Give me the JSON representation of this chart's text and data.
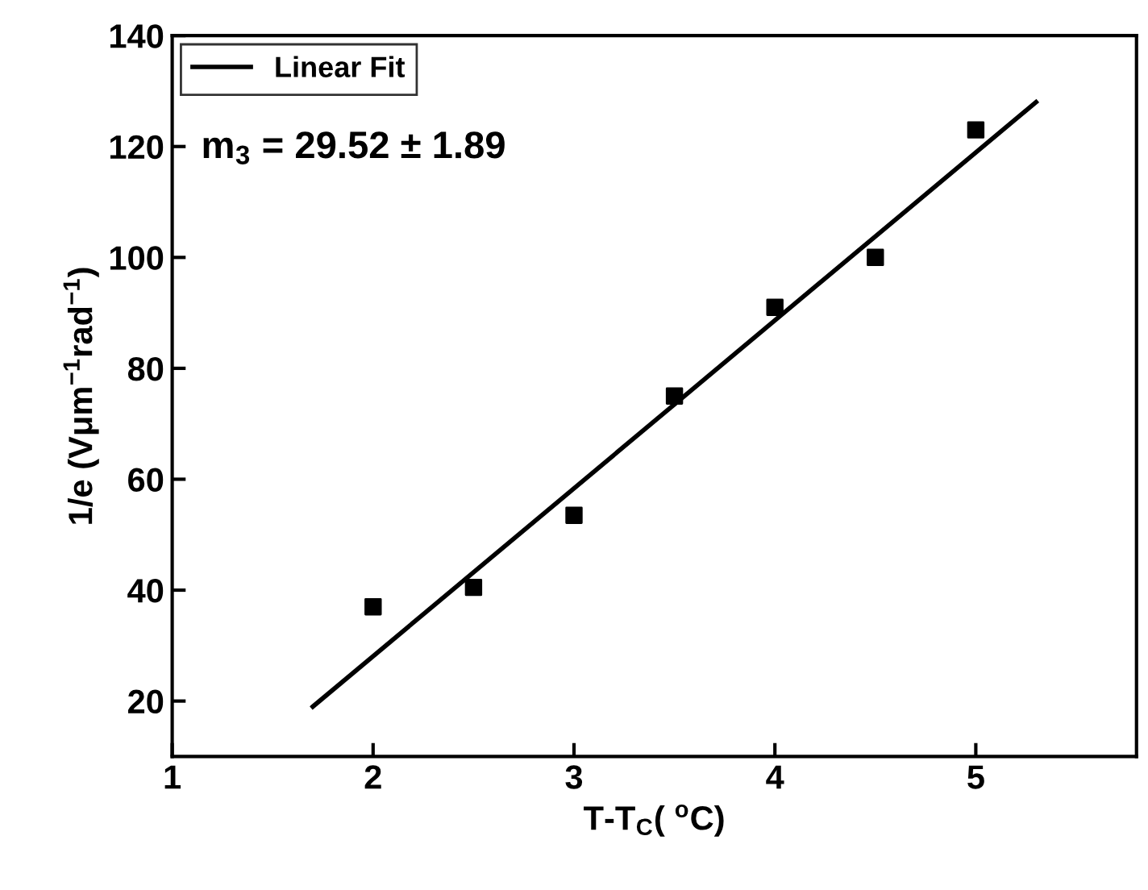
{
  "chart_data": {
    "type": "scatter",
    "xlabel": "T-T$_{C}$( $^{o}$C)",
    "ylabel": "1/e (Vμm$^{−1}$rad$^{−1}$)",
    "series": [
      {
        "color": "#000000",
        "marker": "square",
        "x": [
          2,
          2.5,
          3,
          3.5,
          4,
          4.5,
          5
        ],
        "values": [
          37,
          40.5,
          53.5,
          75,
          91,
          100,
          123
        ]
      },
      {
        "type": "line",
        "name": "Linear Fit",
        "color": "#000000",
        "marker": "none",
        "line_style": "solid",
        "x": [
          1.7,
          5.3
        ],
        "values": [
          19,
          128
        ]
      }
    ],
    "annotations": [
      {
        "text": "m$_{3}$ = 29.52 ± 1.89"
      }
    ],
    "xlim": [
      1,
      5.8
    ],
    "xticks": [
      1,
      2,
      3,
      4,
      5
    ],
    "ylim": [
      10,
      140
    ],
    "yticks": [
      20,
      40,
      60,
      80,
      100,
      120,
      140
    ],
    "legend": "top left",
    "grid": false
  }
}
